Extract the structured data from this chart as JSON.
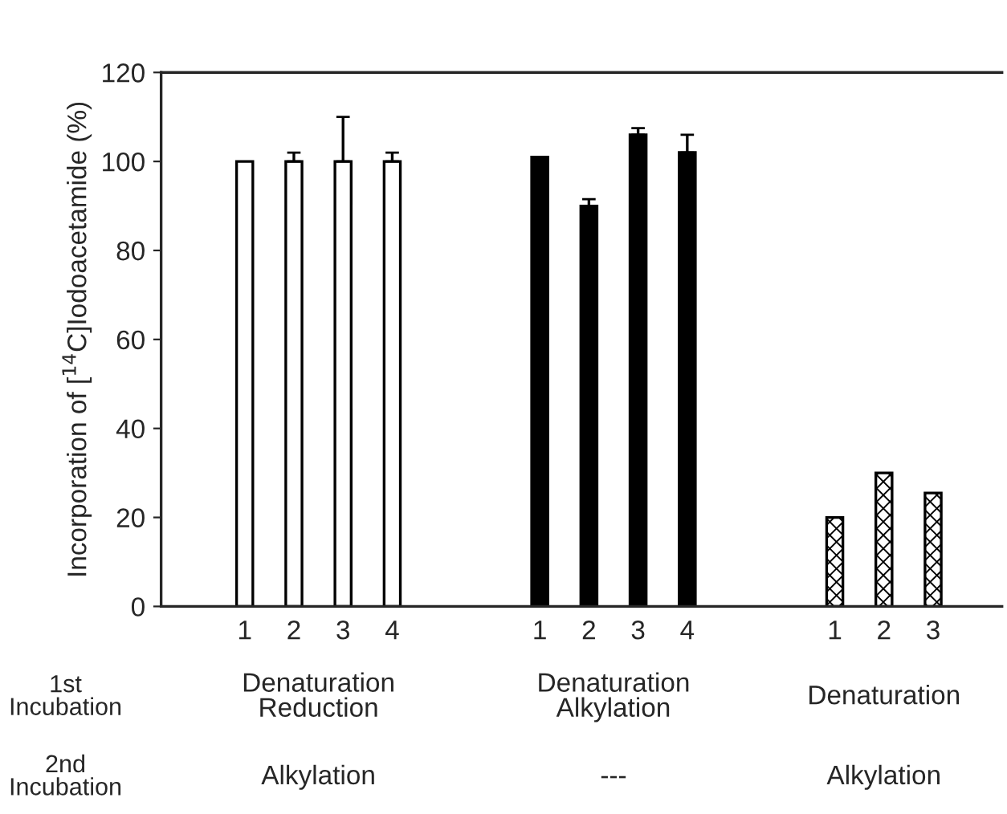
{
  "chart_data": {
    "type": "bar",
    "ylabel": "Incorporation of [$^{14}$C]Iodoacetamide (%)",
    "categories": [
      "1",
      "2",
      "3",
      "4",
      null,
      null,
      "1",
      "2",
      "3",
      "4",
      null,
      null,
      "1",
      "2",
      "3"
    ],
    "series": [
      {
        "color": "#ffffff",
        "values": [
          100,
          100,
          100,
          100,
          null,
          null,
          null,
          null,
          null,
          null,
          null,
          null,
          null,
          null,
          null
        ],
        "errors": [
          null,
          [
            100,
            102
          ],
          [
            100,
            110
          ],
          [
            100,
            102
          ],
          null,
          null,
          null,
          null,
          null,
          null,
          null,
          null,
          null,
          null,
          null
        ]
      },
      {
        "color": "#000000",
        "values": [
          null,
          null,
          null,
          null,
          null,
          null,
          101,
          90,
          106,
          102,
          null,
          null,
          null,
          null,
          null
        ],
        "errors": [
          null,
          null,
          null,
          null,
          null,
          null,
          null,
          [
            90,
            91.5
          ],
          [
            106,
            107.5
          ],
          [
            102,
            106
          ],
          null,
          null,
          null,
          null,
          null
        ]
      },
      {
        "color": "#000000",
        "values": [
          null,
          null,
          null,
          null,
          null,
          null,
          null,
          null,
          null,
          null,
          null,
          null,
          20,
          30,
          25.5
        ]
      }
    ],
    "ylim": [
      0,
      120
    ],
    "yticks": [
      0,
      20,
      40,
      60,
      80,
      100,
      120
    ],
    "annotations": [
      "1st\nIncubation",
      "Denaturation\nReduction",
      "Denaturation\nAlkylation",
      "Denaturation",
      "2nd\nIncubation",
      "Alkylation",
      "---",
      "Alkylation"
    ]
  }
}
